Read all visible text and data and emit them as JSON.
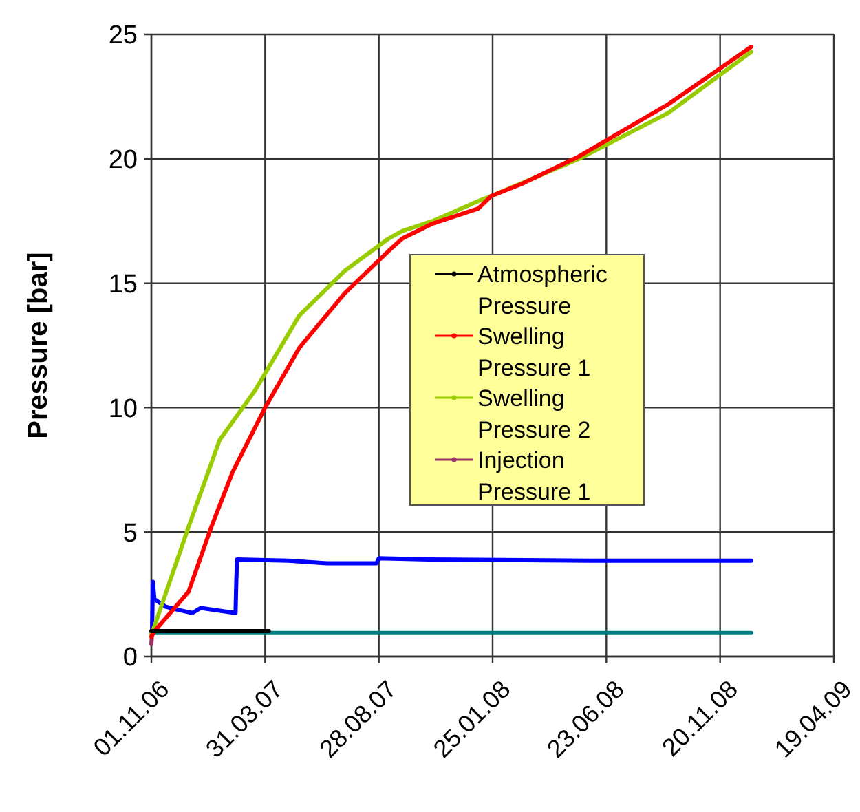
{
  "chart_data": {
    "type": "line",
    "ylabel": "Pressure [bar]",
    "xlim": [
      "2006-11-01",
      "2009-04-19"
    ],
    "xticks": [
      {
        "value": "2006-11-01",
        "label": "01.11.06"
      },
      {
        "value": "2007-03-31",
        "label": "31.03.07"
      },
      {
        "value": "2007-08-28",
        "label": "28.08.07"
      },
      {
        "value": "2008-01-25",
        "label": "25.01.08"
      },
      {
        "value": "2008-06-23",
        "label": "23.06.08"
      },
      {
        "value": "2008-11-20",
        "label": "20.11.08"
      },
      {
        "value": "2009-04-19",
        "label": "19.04.09"
      }
    ],
    "ylim": [
      0,
      25
    ],
    "yticks": [
      0,
      5,
      10,
      15,
      20,
      25
    ],
    "grid": true,
    "legend": "center",
    "series": [
      {
        "name": "Atmospheric Pressure",
        "color": "#000000",
        "x": [
          "2006-11-01",
          "2007-04-05"
        ],
        "values": [
          1.02,
          1.02
        ]
      },
      {
        "name": "Swelling Pressure 1",
        "color": "#ff0000",
        "x": [
          "2006-11-01",
          "2006-11-06",
          "2006-12-20",
          "2007-01-19",
          "2007-02-16",
          "2007-03-31",
          "2007-05-15",
          "2007-07-14",
          "2007-09-10",
          "2007-09-28",
          "2007-11-07",
          "2008-01-06",
          "2008-01-23",
          "2008-03-04",
          "2008-05-18",
          "2008-09-13",
          "2008-12-31"
        ],
        "values": [
          0.8,
          1.05,
          2.6,
          5.2,
          7.4,
          10.0,
          12.4,
          14.6,
          16.3,
          16.8,
          17.4,
          18.0,
          18.5,
          19.0,
          20.1,
          22.2,
          24.5
        ]
      },
      {
        "name": "Swelling Pressure 2",
        "color": "#99cc00",
        "x": [
          "2006-11-01",
          "2006-11-06",
          "2006-12-20",
          "2007-01-30",
          "2007-03-18",
          "2007-05-15",
          "2007-07-14",
          "2007-09-10",
          "2007-09-28",
          "2007-11-07",
          "2008-01-06",
          "2008-01-23",
          "2008-05-18",
          "2008-09-13",
          "2008-12-31"
        ],
        "values": [
          0.9,
          1.3,
          5.2,
          8.7,
          10.7,
          13.7,
          15.5,
          16.8,
          17.1,
          17.5,
          18.3,
          18.5,
          20.0,
          21.85,
          24.3
        ]
      },
      {
        "name": "Injection Pressure 1",
        "color": "#993366",
        "x": [
          "2006-11-01",
          "2006-11-02",
          "2006-11-04"
        ],
        "values": [
          0.5,
          1.0,
          1.0
        ]
      },
      {
        "color": "#0000ff",
        "x": [
          "2006-11-02",
          "2006-11-03",
          "2006-11-05",
          "2006-11-20",
          "2006-12-10",
          "2006-12-25",
          "2007-01-05",
          "2007-02-20",
          "2007-02-21",
          "2007-02-22",
          "2007-05-01",
          "2007-06-20",
          "2007-08-25",
          "2007-08-28",
          "2007-11-01",
          "2008-06-01",
          "2008-12-31"
        ],
        "values": [
          1.1,
          3.0,
          2.3,
          2.0,
          1.85,
          1.75,
          1.95,
          1.75,
          3.0,
          3.9,
          3.85,
          3.75,
          3.75,
          3.95,
          3.9,
          3.85,
          3.85
        ]
      },
      {
        "color": "#008080",
        "x": [
          "2006-11-01",
          "2007-06-01",
          "2008-01-01",
          "2008-12-31"
        ],
        "values": [
          0.95,
          0.95,
          0.95,
          0.95
        ]
      }
    ]
  }
}
